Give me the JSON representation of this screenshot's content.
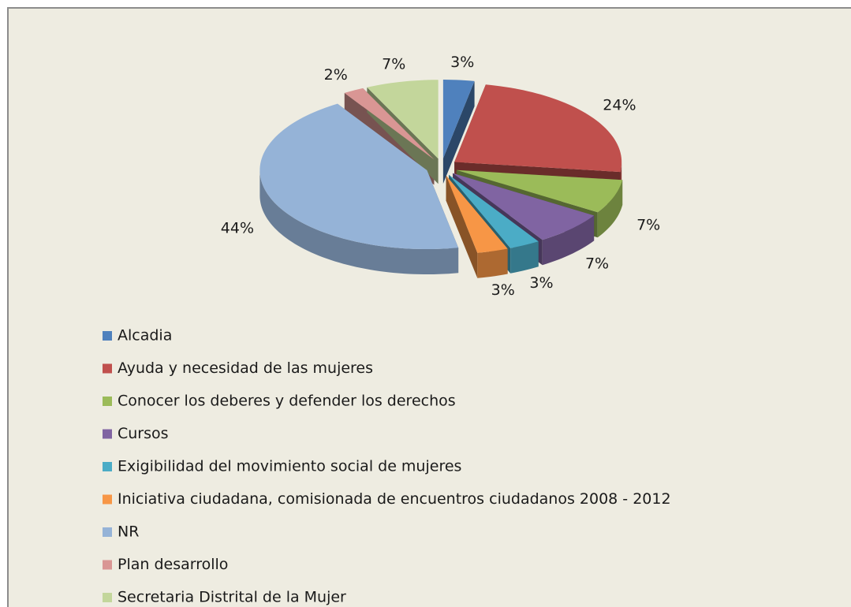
{
  "chart_data": {
    "type": "pie3d",
    "categories": [
      "Alcadia",
      "Ayuda y necesidad de las mujeres",
      "Conocer los deberes y  defender los derechos",
      "Cursos",
      "Exigibilidad del movimiento social de mujeres",
      "Iniciativa ciudadana, comisionada de encuentros ciudadanos 2008 - 2012",
      "NR",
      "Plan desarrollo",
      "Secretaria Distrital de la Mujer"
    ],
    "values": [
      3,
      24,
      7,
      7,
      3,
      3,
      44,
      2,
      7
    ],
    "value_labels": [
      "3%",
      "24%",
      "7%",
      "7%",
      "3%",
      "3%",
      "44%",
      "2%",
      "7%"
    ],
    "colors": [
      "#4f81bd",
      "#c0504d",
      "#9bbb59",
      "#8064a2",
      "#4bacc6",
      "#f79646",
      "#95b3d7",
      "#d99694",
      "#c3d69b"
    ],
    "legend": "bottom"
  }
}
